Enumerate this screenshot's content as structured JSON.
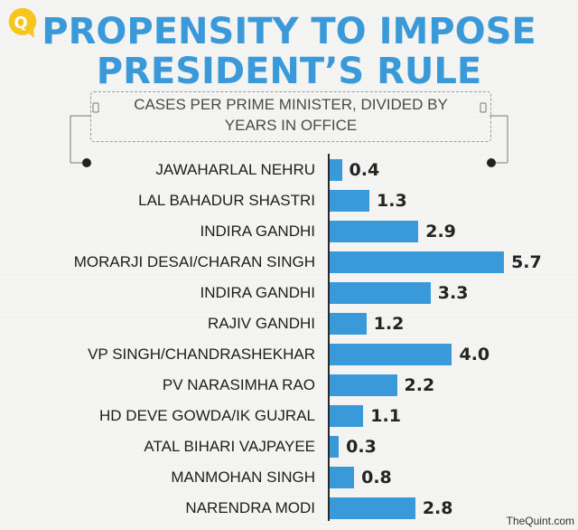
{
  "brand": {
    "logo_glyph": "Q",
    "logo_color": "#f7c51e",
    "credit": "TheQuint.com"
  },
  "chart_data": {
    "type": "bar",
    "orientation": "horizontal",
    "title": "PROPENSITY TO IMPOSE PRESIDENT’S RULE",
    "title_lines": [
      "PROPENSITY TO IMPOSE",
      "PRESIDENT’S RULE"
    ],
    "subtitle": "CASES PER PRIME MINISTER, DIVIDED BY YEARS IN OFFICE",
    "subtitle_lines": [
      "CASES PER PRIME MINISTER, DIVIDED BY",
      "YEARS IN OFFICE"
    ],
    "xlabel": "",
    "ylabel": "",
    "xlim": [
      0,
      6.2
    ],
    "grid": false,
    "bar_color": "#3a9ad9",
    "categories": [
      "JAWAHARLAL NEHRU",
      "LAL BAHADUR SHASTRI",
      "INDIRA GANDHI",
      "MORARJI DESAI/CHARAN SINGH",
      "INDIRA GANDHI",
      "RAJIV GANDHI",
      "VP SINGH/CHANDRASHEKHAR",
      "PV NARASIMHA RAO",
      "HD DEVE GOWDA/IK GUJRAL",
      "ATAL BIHARI VAJPAYEE",
      "MANMOHAN SINGH",
      "NARENDRA MODI"
    ],
    "values": [
      0.4,
      1.3,
      2.9,
      5.7,
      3.3,
      1.2,
      4.0,
      2.2,
      1.1,
      0.3,
      0.8,
      2.8
    ],
    "value_labels": [
      "0.4",
      "1.3",
      "2.9",
      "5.7",
      "3.3",
      "1.2",
      "4.0",
      "2.2",
      "1.1",
      "0.3",
      "0.8",
      "2.8"
    ]
  }
}
